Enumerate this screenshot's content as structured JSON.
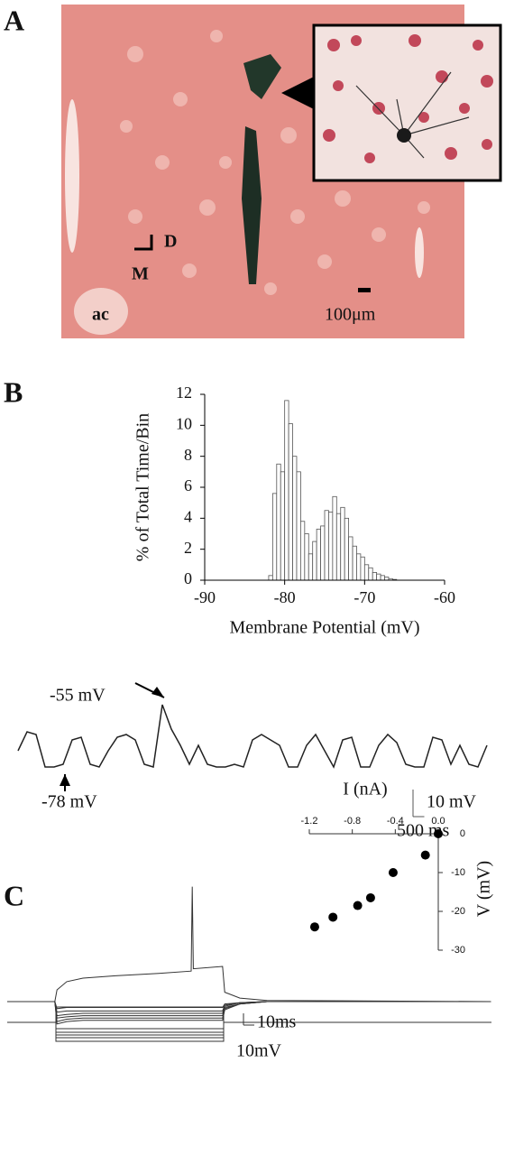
{
  "panel_labels": [
    "A",
    "B",
    "C"
  ],
  "micrograph": {
    "orientation": [
      "D",
      "M"
    ],
    "structure": "ac",
    "scale_bar": "100μm"
  },
  "chart_data": [
    {
      "type": "histogram",
      "y_label": "% of Total Time/Bin",
      "x_label": "Membrane Potential (mV)",
      "bins": [
        -82,
        -81.5,
        -81,
        -80.5,
        -80,
        -79.5,
        -79,
        -78.5,
        -78,
        -77.5,
        -77,
        -76.5,
        -76,
        -75.5,
        -75,
        -74.5,
        -74,
        -73.5,
        -73,
        -72.5,
        -72,
        -71.5,
        -71,
        -70.5,
        -70,
        -69.5,
        -69,
        -68.5,
        -68,
        -67.5,
        -67,
        -66.5,
        -66
      ],
      "values": [
        0.3,
        5.6,
        7.5,
        7,
        11.6,
        10.1,
        8,
        7,
        3.8,
        3,
        1.7,
        2.5,
        3.3,
        3.5,
        4.5,
        4.4,
        5.4,
        4.3,
        4.7,
        4,
        2.8,
        2.2,
        1.7,
        1.5,
        1,
        0.8,
        0.5,
        0.4,
        0.3,
        0.2,
        0.1,
        0.05
      ],
      "color": "#ffffff",
      "edgecolor": "#555555",
      "xlim": [
        -90,
        -60
      ],
      "xticks": [
        -90,
        -80,
        -70,
        -60
      ],
      "ylim": [
        0,
        12
      ],
      "yticks": [
        0,
        2,
        4,
        6,
        8,
        10,
        12
      ]
    },
    {
      "type": "trace",
      "color": "#222222",
      "x": [
        0,
        400,
        800,
        1200,
        1600,
        2000,
        2400,
        2800,
        3200,
        3600,
        4000,
        4400,
        4800,
        5200,
        5600,
        6000,
        6400,
        6800,
        7200,
        7600,
        8000,
        8400,
        8800,
        9200,
        9600,
        10000,
        10400,
        10800,
        11200,
        11600,
        12000,
        12400,
        12800,
        13200,
        13600,
        14000,
        14400,
        14800,
        15200,
        15600,
        16000,
        16400,
        16800,
        17200,
        17600,
        18000,
        18400,
        18800,
        19200,
        19600,
        20000,
        20400,
        20800
      ],
      "values": [
        -72,
        -65,
        -66,
        -78,
        -78,
        -77,
        -68,
        -67,
        -77,
        -78,
        -72,
        -67,
        -66,
        -68,
        -77,
        -78,
        -55,
        -64,
        -70,
        -77,
        -70,
        -77,
        -78,
        -78,
        -77,
        -78,
        -68,
        -66,
        -68,
        -70,
        -78,
        -78,
        -70,
        -66,
        -72,
        -78,
        -68,
        -67,
        -78,
        -78,
        -70,
        -66,
        -69,
        -77,
        -78,
        -78,
        -67,
        -68,
        -77,
        -70,
        -77,
        -78,
        -70
      ],
      "annotations": [
        {
          "text": "-55 mV",
          "value": -55
        },
        {
          "text": "-78 mV",
          "value": -78
        }
      ],
      "scale_bar": {
        "x": 500,
        "x_label": "500 ms",
        "y": 10,
        "y_label": "10 mV"
      }
    },
    {
      "type": "traces",
      "color": "#333333",
      "x": [
        0,
        44,
        46,
        55,
        70,
        100,
        140,
        170,
        171,
        172,
        199,
        201,
        215,
        240,
        447
      ],
      "series": [
        {
          "values": [
            0,
            0,
            10,
            17,
            20,
            22,
            24,
            26,
            98,
            28,
            30,
            8,
            3,
            1,
            0
          ]
        },
        {
          "values": [
            0,
            0,
            -6,
            -5,
            -5,
            -5,
            -5,
            -5,
            -5,
            -5,
            -5,
            -2,
            -1,
            0,
            0
          ]
        },
        {
          "values": [
            0,
            0,
            -9,
            -8,
            -8,
            -8,
            -8,
            -8,
            -8,
            -8,
            -8,
            -3,
            -1,
            0,
            0
          ]
        },
        {
          "values": [
            0,
            0,
            -12,
            -11,
            -10,
            -10,
            -10,
            -10,
            -10,
            -10,
            -10,
            -4,
            -1,
            0,
            0
          ]
        },
        {
          "values": [
            0,
            0,
            -14,
            -13,
            -12,
            -12,
            -12,
            -12,
            -12,
            -12,
            -12,
            -5,
            -2,
            0,
            0
          ]
        },
        {
          "values": [
            0,
            0,
            -17,
            -15,
            -14,
            -14,
            -14,
            -14,
            -14,
            -14,
            -14,
            -6,
            -2,
            0,
            0
          ]
        },
        {
          "values": [
            0,
            0,
            -19,
            -17,
            -16,
            -16,
            -16,
            -16,
            -16,
            -16,
            -16,
            -7,
            -2,
            0,
            0
          ]
        }
      ],
      "scale_bar": {
        "x": 10,
        "x_label": "10ms",
        "y": 10,
        "y_label": "10mV"
      }
    },
    {
      "type": "scatter",
      "x_label": "I (nA)",
      "y_label": "V (mV)",
      "color": "#000000",
      "x": [
        -1.15,
        -0.98,
        -0.75,
        -0.63,
        -0.42,
        -0.12,
        0
      ],
      "values": [
        -24,
        -21.5,
        -18.5,
        -16.5,
        -10,
        -5.5,
        0
      ],
      "xlim": [
        -1.2,
        0
      ],
      "xticks": [
        -1.2,
        -0.8,
        -0.4,
        {
          "value": 0,
          "label": "0.0"
        }
      ],
      "ylim": [
        -30,
        0
      ],
      "yticks": [
        0,
        -10,
        -20,
        -30
      ],
      "xaxis": "top",
      "yaxis": "right"
    }
  ]
}
